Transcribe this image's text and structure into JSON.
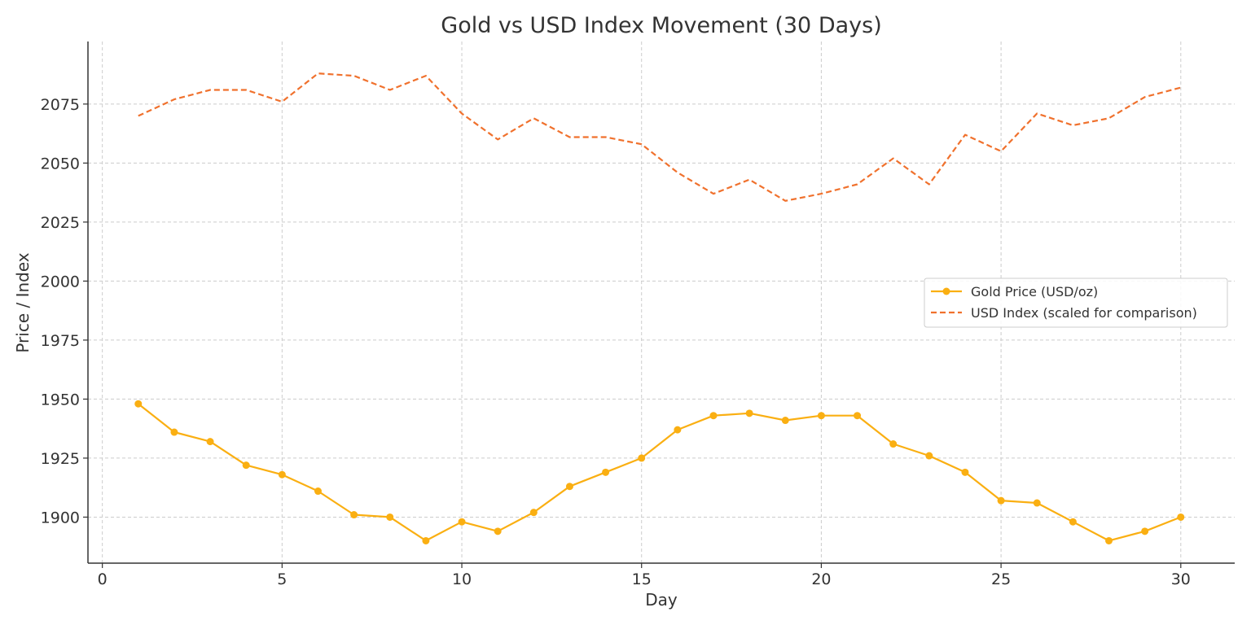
{
  "chart_data": {
    "type": "line",
    "title": "Gold vs USD Index Movement (30 Days)",
    "xlabel": "Day",
    "ylabel": "Price / Index",
    "xlim": [
      -0.4,
      31.5
    ],
    "ylim": [
      1880.5,
      2101.5
    ],
    "xticks": [
      0,
      5,
      10,
      15,
      20,
      25,
      30
    ],
    "yticks": [
      1900,
      1925,
      1950,
      1975,
      2000,
      2025,
      2050,
      2075
    ],
    "grid": true,
    "legend_position": "center-right",
    "x": [
      1,
      2,
      3,
      4,
      5,
      6,
      7,
      8,
      9,
      10,
      11,
      12,
      13,
      14,
      15,
      16,
      17,
      18,
      19,
      20,
      21,
      22,
      23,
      24,
      25,
      26,
      27,
      28,
      29,
      30
    ],
    "series": [
      {
        "name": "Gold Price (USD/oz)",
        "color": "#FAAF12",
        "style": "solid",
        "marker": "circle",
        "values": [
          1948,
          1936,
          1932,
          1922,
          1918,
          1911,
          1901,
          1900,
          1890,
          1898,
          1894,
          1902,
          1913,
          1919,
          1925,
          1937,
          1943,
          1944,
          1941,
          1943,
          1943,
          1931,
          1926,
          1919,
          1907,
          1906,
          1898,
          1890,
          1894,
          1900
        ]
      },
      {
        "name": "USD Index (scaled for comparison)",
        "color": "#F0712D",
        "style": "dashed",
        "marker": "none",
        "values": [
          2070,
          2077,
          2081,
          2081,
          2076,
          2088,
          2087,
          2081,
          2087,
          2071,
          2060,
          2069,
          2061,
          2061,
          2058,
          2046,
          2037,
          2043,
          2034,
          2037,
          2041,
          2052,
          2041,
          2062,
          2055,
          2071,
          2066,
          2069,
          2078,
          2082
        ]
      }
    ]
  }
}
